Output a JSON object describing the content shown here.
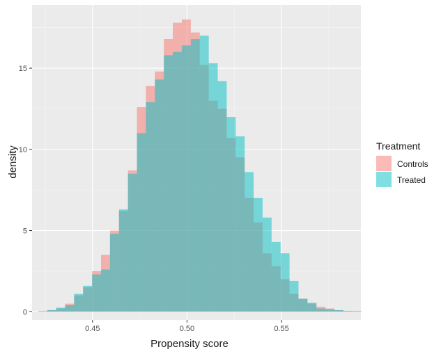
{
  "chart_data": {
    "type": "bar",
    "xlabel": "Propensity score",
    "ylabel": "density",
    "xlim": [
      0.418,
      0.592
    ],
    "ylim": [
      -0.5,
      18.9
    ],
    "x_ticks": [
      0.45,
      0.5,
      0.55
    ],
    "x_tick_labels": [
      "0.45",
      "0.50",
      "0.55"
    ],
    "y_ticks": [
      0,
      5,
      10,
      15
    ],
    "y_tick_labels": [
      "0",
      "5",
      "10",
      "15"
    ],
    "grid": true,
    "bin_width": 0.00475,
    "bin_start": 0.42125,
    "legend": {
      "title": "Treatment",
      "placement": "right",
      "entries": [
        {
          "label": "Controls",
          "color": "#f8766d"
        },
        {
          "label": "Treated",
          "color": "#00bfc4"
        }
      ]
    },
    "series": [
      {
        "name": "Controls",
        "color": "#f8766d",
        "values": [
          0.05,
          0.1,
          0.2,
          0.5,
          1.0,
          1.5,
          2.5,
          3.5,
          5.0,
          6.2,
          8.7,
          12.6,
          13.9,
          14.8,
          16.8,
          17.8,
          18.0,
          17.2,
          15.2,
          13.0,
          12.5,
          10.7,
          9.5,
          7.0,
          5.5,
          3.6,
          2.8,
          2.0,
          1.1,
          0.8,
          0.5,
          0.3,
          0.2,
          0.1,
          0.05,
          0.02
        ]
      },
      {
        "name": "Treated",
        "color": "#00bfc4",
        "values": [
          0.02,
          0.1,
          0.25,
          0.4,
          1.1,
          1.6,
          2.3,
          2.6,
          4.8,
          6.3,
          8.5,
          11.0,
          12.9,
          14.3,
          15.8,
          16.0,
          16.4,
          16.8,
          17.0,
          15.3,
          14.2,
          12.0,
          10.8,
          8.6,
          7.0,
          5.8,
          4.3,
          3.6,
          1.9,
          0.8,
          0.55,
          0.2,
          0.15,
          0.1,
          0.05,
          0.05
        ]
      }
    ]
  }
}
